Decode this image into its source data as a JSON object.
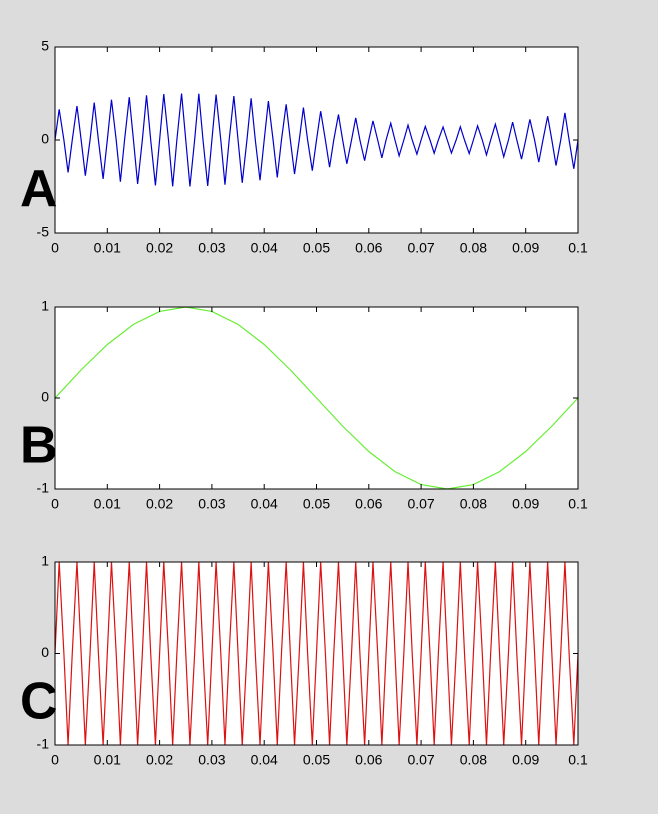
{
  "chart_data": [
    {
      "type": "line",
      "label": "A",
      "x": [
        0,
        0.0008,
        0.0017,
        0.0025,
        0.0033,
        0.0042,
        0.005,
        0.0058,
        0.0067,
        0.0075,
        0.0083,
        0.0092,
        0.01,
        0.0108,
        0.0117,
        0.0125,
        0.0133,
        0.0142,
        0.015,
        0.0158,
        0.0167,
        0.0175,
        0.0183,
        0.0192,
        0.02,
        0.0208,
        0.0217,
        0.0225,
        0.0233,
        0.0242,
        0.025,
        0.0258,
        0.0267,
        0.0275,
        0.0283,
        0.0292,
        0.03,
        0.0308,
        0.0317,
        0.0325,
        0.0333,
        0.0342,
        0.035,
        0.0358,
        0.0367,
        0.0375,
        0.0383,
        0.0392,
        0.04,
        0.0408,
        0.0417,
        0.0425,
        0.0433,
        0.0442,
        0.045,
        0.0458,
        0.0467,
        0.0475,
        0.0483,
        0.0492,
        0.05,
        0.0508,
        0.0517,
        0.0525,
        0.0533,
        0.0542,
        0.055,
        0.0558,
        0.0567,
        0.0575,
        0.0583,
        0.0592,
        0.06,
        0.0608,
        0.0617,
        0.0625,
        0.0633,
        0.0642,
        0.065,
        0.0658,
        0.0667,
        0.0675,
        0.0683,
        0.0692,
        0.07,
        0.0708,
        0.0717,
        0.0725,
        0.0733,
        0.0742,
        0.075,
        0.0758,
        0.0767,
        0.0775,
        0.0783,
        0.0792,
        0.08,
        0.0808,
        0.0817,
        0.0825,
        0.0833,
        0.0842,
        0.085,
        0.0858,
        0.0867,
        0.0875,
        0.0883,
        0.0892,
        0.09,
        0.0908,
        0.0917,
        0.0925,
        0.0933,
        0.0942,
        0.095,
        0.0958,
        0.0967,
        0.0975,
        0.0983,
        0.0992,
        0.1
      ],
      "series": [
        {
          "color": "#0000cc",
          "values": [
            0,
            1.65,
            0,
            -1.74,
            0,
            1.83,
            0,
            -1.92,
            0,
            2.01,
            0,
            -2.09,
            0,
            2.17,
            0,
            -2.24,
            0,
            2.3,
            0,
            -2.36,
            0,
            2.4,
            0,
            -2.44,
            0,
            2.47,
            0,
            -2.49,
            0,
            2.5,
            0,
            -2.5,
            0,
            2.49,
            0,
            -2.47,
            0,
            2.44,
            0,
            -2.4,
            0,
            2.36,
            0,
            -2.3,
            0,
            2.24,
            0,
            -2.17,
            0,
            2.09,
            0,
            -2.01,
            0,
            1.92,
            0,
            -1.83,
            0,
            1.74,
            0,
            -1.65,
            0,
            1.55,
            0,
            -1.46,
            0,
            1.37,
            0,
            -1.28,
            0,
            1.19,
            0,
            -1.11,
            0,
            1.03,
            0,
            -0.96,
            0,
            0.9,
            0,
            -0.85,
            0,
            0.8,
            0,
            -0.76,
            0,
            0.73,
            0,
            -0.71,
            0,
            0.7,
            0,
            -0.7,
            0,
            0.71,
            0,
            -0.73,
            0,
            0.76,
            0,
            -0.8,
            0,
            0.85,
            0,
            -0.9,
            0,
            0.96,
            0,
            -1.03,
            0,
            1.11,
            0,
            -1.19,
            0,
            1.28,
            0,
            -1.37,
            0,
            1.46,
            0,
            -1.55,
            0
          ]
        }
      ],
      "xlim": [
        0,
        0.1
      ],
      "ylim": [
        -5,
        5
      ],
      "xticks": [
        0,
        0.01,
        0.02,
        0.03,
        0.04,
        0.05,
        0.06,
        0.07,
        0.08,
        0.09,
        0.1
      ],
      "yticks": [
        -5,
        0,
        5
      ]
    },
    {
      "type": "line",
      "label": "B",
      "x": [
        0,
        0.005,
        0.01,
        0.015,
        0.02,
        0.025,
        0.03,
        0.035,
        0.04,
        0.045,
        0.05,
        0.055,
        0.06,
        0.065,
        0.07,
        0.075,
        0.08,
        0.085,
        0.09,
        0.095,
        0.1
      ],
      "series": [
        {
          "color": "#66ee33",
          "values": [
            0,
            0.309,
            0.588,
            0.809,
            0.951,
            1,
            0.951,
            0.809,
            0.588,
            0.309,
            0,
            -0.309,
            -0.588,
            -0.809,
            -0.951,
            -1,
            -0.951,
            -0.809,
            -0.588,
            -0.309,
            0
          ]
        }
      ],
      "xlim": [
        0,
        0.1
      ],
      "ylim": [
        -1,
        1
      ],
      "xticks": [
        0,
        0.01,
        0.02,
        0.03,
        0.04,
        0.05,
        0.06,
        0.07,
        0.08,
        0.09,
        0.1
      ],
      "yticks": [
        -1,
        0,
        1
      ]
    },
    {
      "type": "line",
      "label": "C",
      "x": [
        0,
        0.0008,
        0.0017,
        0.0025,
        0.0033,
        0.0042,
        0.005,
        0.0058,
        0.0067,
        0.0075,
        0.0083,
        0.0092,
        0.01,
        0.0108,
        0.0117,
        0.0125,
        0.0133,
        0.0142,
        0.015,
        0.0158,
        0.0167,
        0.0175,
        0.0183,
        0.0192,
        0.02,
        0.0208,
        0.0217,
        0.0225,
        0.0233,
        0.0242,
        0.025,
        0.0258,
        0.0267,
        0.0275,
        0.0283,
        0.0292,
        0.03,
        0.0308,
        0.0317,
        0.0325,
        0.0333,
        0.0342,
        0.035,
        0.0358,
        0.0367,
        0.0375,
        0.0383,
        0.0392,
        0.04,
        0.0408,
        0.0417,
        0.0425,
        0.0433,
        0.0442,
        0.045,
        0.0458,
        0.0467,
        0.0475,
        0.0483,
        0.0492,
        0.05,
        0.0508,
        0.0517,
        0.0525,
        0.0533,
        0.0542,
        0.055,
        0.0558,
        0.0567,
        0.0575,
        0.0583,
        0.0592,
        0.06,
        0.0608,
        0.0617,
        0.0625,
        0.0633,
        0.0642,
        0.065,
        0.0658,
        0.0667,
        0.0675,
        0.0683,
        0.0692,
        0.07,
        0.0708,
        0.0717,
        0.0725,
        0.0733,
        0.0742,
        0.075,
        0.0758,
        0.0767,
        0.0775,
        0.0783,
        0.0792,
        0.08,
        0.0808,
        0.0817,
        0.0825,
        0.0833,
        0.0842,
        0.085,
        0.0858,
        0.0867,
        0.0875,
        0.0883,
        0.0892,
        0.09,
        0.0908,
        0.0917,
        0.0925,
        0.0933,
        0.0942,
        0.095,
        0.0958,
        0.0967,
        0.0975,
        0.0983,
        0.0992,
        0.1
      ],
      "series": [
        {
          "color": "#dd1111",
          "values": [
            0,
            1,
            0,
            -1,
            0,
            1,
            0,
            -1,
            0,
            1,
            0,
            -1,
            0,
            1,
            0,
            -1,
            0,
            1,
            0,
            -1,
            0,
            1,
            0,
            -1,
            0,
            1,
            0,
            -1,
            0,
            1,
            0,
            -1,
            0,
            1,
            0,
            -1,
            0,
            1,
            0,
            -1,
            0,
            1,
            0,
            -1,
            0,
            1,
            0,
            -1,
            0,
            1,
            0,
            -1,
            0,
            1,
            0,
            -1,
            0,
            1,
            0,
            -1,
            0,
            1,
            0,
            -1,
            0,
            1,
            0,
            -1,
            0,
            1,
            0,
            -1,
            0,
            1,
            0,
            -1,
            0,
            1,
            0,
            -1,
            0,
            1,
            0,
            -1,
            0,
            1,
            0,
            -1,
            0,
            1,
            0,
            -1,
            0,
            1,
            0,
            -1,
            0,
            1,
            0,
            -1,
            0,
            1,
            0,
            -1,
            0,
            1,
            0,
            -1,
            0,
            1,
            0,
            -1,
            0,
            1,
            0,
            -1,
            0,
            1,
            0,
            -1,
            0
          ]
        }
      ],
      "xlim": [
        0,
        0.1
      ],
      "ylim": [
        -1,
        1
      ],
      "xticks": [
        0,
        0.01,
        0.02,
        0.03,
        0.04,
        0.05,
        0.06,
        0.07,
        0.08,
        0.09,
        0.1
      ],
      "yticks": [
        -1,
        0,
        1
      ]
    }
  ]
}
